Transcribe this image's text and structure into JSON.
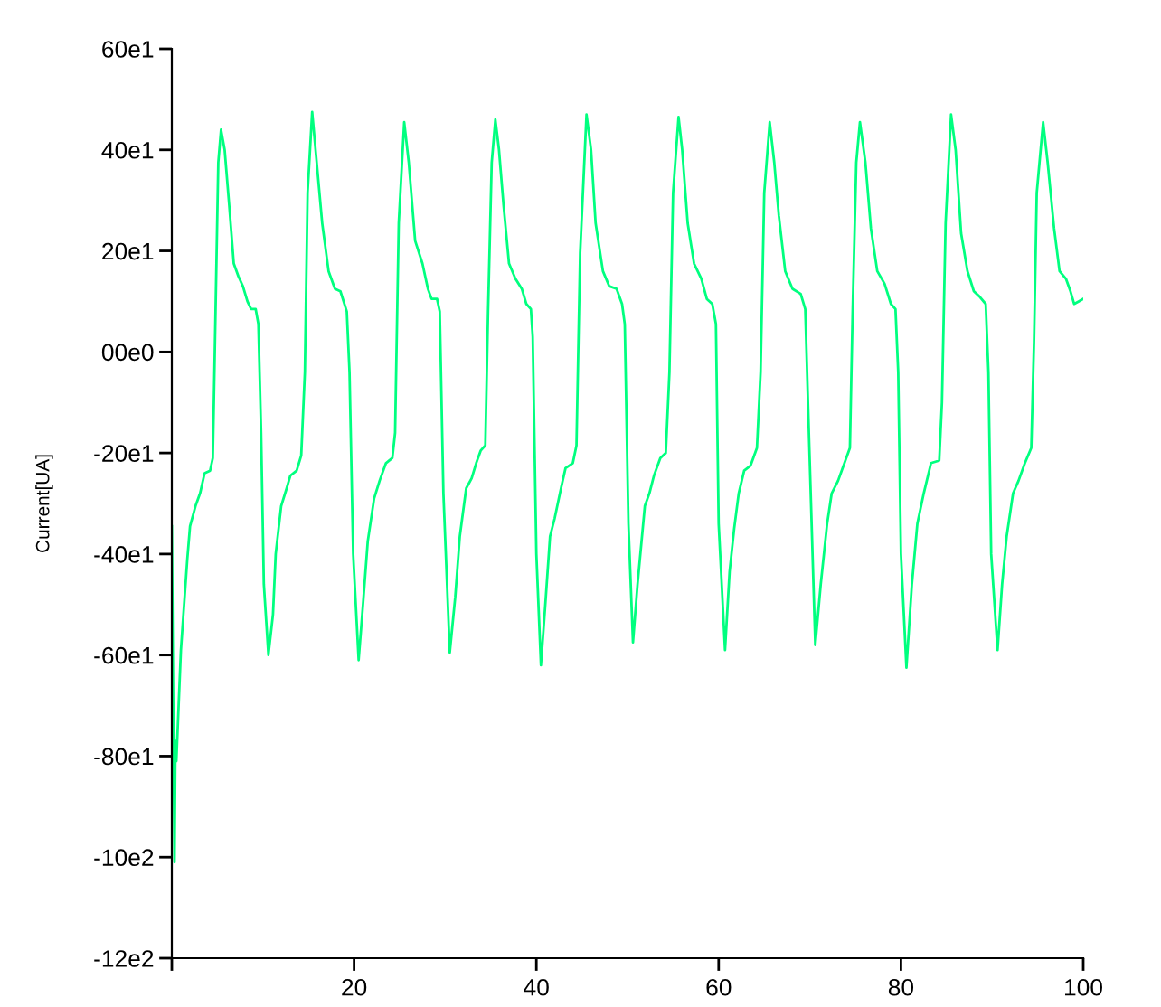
{
  "chart_data": {
    "type": "line",
    "ylabel": "Current[UA]",
    "x": [
      0,
      0.3,
      0.4,
      0.5,
      1.0,
      1.7,
      2.0,
      2.6,
      3.1,
      3.6,
      4.2,
      4.5,
      4.8,
      5.1,
      5.4,
      5.8,
      6.3,
      6.8,
      7.3,
      7.8,
      8.3,
      8.7,
      9.2,
      9.5,
      9.8,
      10.1,
      10.6,
      11.1,
      11.4,
      12.0,
      12.6,
      13.0,
      13.7,
      14.2,
      14.6,
      14.9,
      15.4,
      15.9,
      16.5,
      17.2,
      17.9,
      18.5,
      19.2,
      19.5,
      19.9,
      20.5,
      21.0,
      21.5,
      22.2,
      22.8,
      23.5,
      24.2,
      24.5,
      24.9,
      25.5,
      26.0,
      26.7,
      27.5,
      28.1,
      28.5,
      29.1,
      29.4,
      29.8,
      30.5,
      31.1,
      31.6,
      32.3,
      32.9,
      33.4,
      33.9,
      34.4,
      34.7,
      35.1,
      35.5,
      35.9,
      36.4,
      37.0,
      37.7,
      38.4,
      38.9,
      39.4,
      39.6,
      40.0,
      40.5,
      41.0,
      41.5,
      42.0,
      42.7,
      43.2,
      44.0,
      44.4,
      44.8,
      45.5,
      46.0,
      46.5,
      47.3,
      48.0,
      48.8,
      49.4,
      49.7,
      50.1,
      50.6,
      51.1,
      51.9,
      52.4,
      52.9,
      53.6,
      54.2,
      54.6,
      55.0,
      55.6,
      56.0,
      56.6,
      57.3,
      58.1,
      58.7,
      59.3,
      59.7,
      60.0,
      60.7,
      61.2,
      61.7,
      62.2,
      62.8,
      63.5,
      64.2,
      64.6,
      65.0,
      65.6,
      66.1,
      66.6,
      67.3,
      68.1,
      69.0,
      69.5,
      69.9,
      70.6,
      71.2,
      71.9,
      72.4,
      73.1,
      73.8,
      74.4,
      74.7,
      75.1,
      75.5,
      76.1,
      76.7,
      77.4,
      78.2,
      78.9,
      79.4,
      79.7,
      80.0,
      80.6,
      81.2,
      81.8,
      82.5,
      83.3,
      84.2,
      84.5,
      84.9,
      85.5,
      86.0,
      86.6,
      87.3,
      88.0,
      88.6,
      89.3,
      89.6,
      89.9,
      90.6,
      91.1,
      91.6,
      92.3,
      92.9,
      93.6,
      94.3,
      94.6,
      94.9,
      95.6,
      96.1,
      96.8,
      97.4,
      98.1,
      98.6,
      99.0,
      99.5,
      100
    ],
    "series": [
      {
        "color": "#00ff7f",
        "values": [
          -345,
          -1010,
          -770,
          -810,
          -590,
          -410,
          -345,
          -305,
          -280,
          -240,
          -235,
          -210,
          80,
          375,
          440,
          400,
          290,
          175,
          150,
          130,
          100,
          85,
          85,
          55,
          -160,
          -460,
          -600,
          -520,
          -400,
          -305,
          -270,
          -245,
          -235,
          -205,
          -40,
          315,
          475,
          375,
          255,
          160,
          125,
          120,
          80,
          -40,
          -400,
          -610,
          -495,
          -375,
          -290,
          -255,
          -220,
          -210,
          -160,
          255,
          455,
          375,
          220,
          175,
          125,
          105,
          105,
          80,
          -280,
          -595,
          -485,
          -365,
          -270,
          -250,
          -220,
          -195,
          -185,
          80,
          375,
          460,
          400,
          290,
          175,
          145,
          125,
          95,
          85,
          30,
          -400,
          -620,
          -495,
          -365,
          -330,
          -270,
          -230,
          -220,
          -185,
          195,
          470,
          400,
          255,
          160,
          130,
          125,
          95,
          55,
          -340,
          -575,
          -460,
          -305,
          -280,
          -245,
          -210,
          -200,
          -40,
          315,
          465,
          400,
          255,
          175,
          145,
          105,
          95,
          55,
          -340,
          -590,
          -435,
          -350,
          -280,
          -235,
          -225,
          -190,
          -40,
          315,
          455,
          375,
          270,
          160,
          125,
          115,
          85,
          -160,
          -580,
          -460,
          -340,
          -280,
          -255,
          -220,
          -190,
          80,
          375,
          455,
          375,
          245,
          160,
          135,
          95,
          85,
          -40,
          -400,
          -625,
          -460,
          -340,
          -280,
          -220,
          -215,
          -100,
          255,
          470,
          400,
          235,
          160,
          120,
          110,
          95,
          -40,
          -400,
          -590,
          -460,
          -365,
          -280,
          -255,
          -220,
          -190,
          20,
          315,
          455,
          375,
          245,
          160,
          145,
          120,
          95,
          100,
          105
        ]
      }
    ],
    "xlim": [
      0,
      100
    ],
    "xticks": [
      {
        "value": 0,
        "label": null
      },
      20,
      40,
      60,
      80,
      100
    ],
    "ylim": [
      -1200,
      600
    ],
    "yticks": [
      {
        "value": 600,
        "label": "60e1"
      },
      {
        "value": 400,
        "label": "40e1"
      },
      {
        "value": 200,
        "label": "20e1"
      },
      {
        "value": 0,
        "label": "00e0"
      },
      {
        "value": -200,
        "label": "-20e1"
      },
      {
        "value": -400,
        "label": "-40e1"
      },
      {
        "value": -600,
        "label": "-60e1"
      },
      {
        "value": -800,
        "label": "-80e1"
      },
      {
        "value": -1000,
        "label": "-10e2"
      },
      {
        "value": -1200,
        "label": "-12e2"
      }
    ]
  }
}
